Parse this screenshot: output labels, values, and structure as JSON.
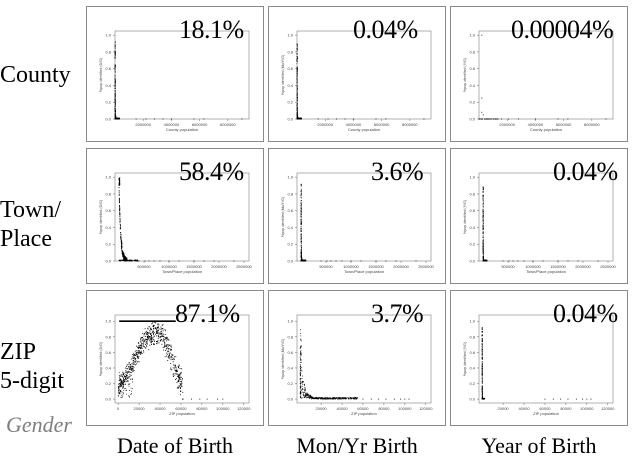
{
  "row_labels": [
    {
      "lines": [
        "County"
      ]
    },
    {
      "lines": [
        "Town/",
        "Place"
      ]
    },
    {
      "lines": [
        "ZIP",
        "5-digit"
      ]
    }
  ],
  "gender_label": "Gender",
  "column_labels": [
    "Date of Birth",
    "Mon/Yr Birth",
    "Year of Birth"
  ],
  "percentages": [
    [
      "18.1%",
      "0.04%",
      "0.00004%"
    ],
    [
      "58.4%",
      "3.6%",
      "0.04%"
    ],
    [
      "87.1%",
      "3.7%",
      "0.04%"
    ]
  ],
  "chart_data": [
    {
      "type": "scatter",
      "panel": "county-dob",
      "xlabel": "County population",
      "ylabel": "%pop identified (D/G)",
      "y_ticks": [
        "0.0",
        "0.2",
        "0.4",
        "0.6",
        "0.8",
        "1.0"
      ],
      "x_ticks": [
        "2000000",
        "4000000",
        "6000000",
        "8000000"
      ],
      "xlim": [
        0,
        9500000
      ],
      "ylim": [
        0,
        1.05
      ],
      "pattern": "spike",
      "peak": 0.92,
      "spike_width": 200000,
      "tail": [
        [
          1500000,
          0
        ],
        [
          2200000,
          0
        ],
        [
          2800000,
          0
        ],
        [
          3400000,
          0
        ],
        [
          4000000,
          0
        ],
        [
          5600000,
          0
        ],
        [
          6300000,
          0
        ],
        [
          9000000,
          0
        ]
      ]
    },
    {
      "type": "scatter",
      "panel": "county-monyr",
      "xlabel": "County population",
      "ylabel": "%pop identified (Mo/Y/G)",
      "y_ticks": [
        "0.0",
        "0.2",
        "0.4",
        "0.6",
        "0.8",
        "1.0"
      ],
      "x_ticks": [
        "2000000",
        "4000000",
        "6000000",
        "8000000"
      ],
      "xlim": [
        0,
        9500000
      ],
      "ylim": [
        0,
        1.05
      ],
      "pattern": "spike",
      "peak": 0.92,
      "spike_width": 200000,
      "tail": [
        [
          1500000,
          0
        ],
        [
          2200000,
          0
        ],
        [
          2800000,
          0
        ],
        [
          3400000,
          0
        ],
        [
          4000000,
          0
        ],
        [
          5600000,
          0
        ],
        [
          6300000,
          0
        ],
        [
          9000000,
          0
        ]
      ]
    },
    {
      "type": "scatter",
      "panel": "county-year",
      "xlabel": "County population",
      "ylabel": "%pop identified (Y/G)",
      "y_ticks": [
        "0.0",
        "0.2",
        "0.4",
        "0.6",
        "0.8",
        "1.0"
      ],
      "x_ticks": [
        "2000000",
        "4000000",
        "6000000",
        "8000000"
      ],
      "xlim": [
        0,
        9500000
      ],
      "ylim": [
        0,
        1.05
      ],
      "pattern": "sparse",
      "points": [
        [
          200000,
          1.0
        ],
        [
          200000,
          0.25
        ],
        [
          200000,
          0.08
        ],
        [
          300000,
          0.05
        ],
        [
          400000,
          0
        ],
        [
          600000,
          0
        ],
        [
          800000,
          0
        ],
        [
          1200000,
          0
        ],
        [
          1600000,
          0
        ],
        [
          2100000,
          0
        ],
        [
          2800000,
          0
        ],
        [
          4000000,
          0
        ],
        [
          5600000,
          0
        ],
        [
          6300000,
          0
        ],
        [
          9000000,
          0
        ]
      ]
    },
    {
      "type": "scatter",
      "panel": "town-dob",
      "xlabel": "Town/Place population",
      "ylabel": "%pop identified (D/G)",
      "y_ticks": [
        "0.0",
        "0.2",
        "0.4",
        "0.6",
        "0.8",
        "1.0"
      ],
      "x_ticks": [
        "500000",
        "1000000",
        "1500000",
        "2000000",
        "2500000"
      ],
      "xlim": [
        -80000,
        2600000
      ],
      "ylim": [
        0,
        1.05
      ],
      "pattern": "curve",
      "peak": 0.92,
      "decay": 22000,
      "tail": [
        [
          400000,
          0
        ],
        [
          520000,
          0
        ],
        [
          600000,
          0
        ],
        [
          700000,
          0
        ],
        [
          820000,
          0
        ],
        [
          1000000,
          0
        ],
        [
          1200000,
          0
        ],
        [
          1500000,
          0
        ],
        [
          1700000,
          0
        ],
        [
          1900000,
          0
        ],
        [
          2300000,
          0
        ]
      ]
    },
    {
      "type": "scatter",
      "panel": "town-monyr",
      "xlabel": "Town/Place population",
      "ylabel": "%pop identified (Mo/Y/G)",
      "y_ticks": [
        "0.0",
        "0.2",
        "0.4",
        "0.6",
        "0.8",
        "1.0"
      ],
      "x_ticks": [
        "500000",
        "1000000",
        "1500000",
        "2000000",
        "2500000"
      ],
      "xlim": [
        -80000,
        2600000
      ],
      "ylim": [
        0,
        1.05
      ],
      "pattern": "spike",
      "peak": 0.92,
      "spike_width": 60000,
      "tail": [
        [
          400000,
          0
        ],
        [
          520000,
          0
        ],
        [
          600000,
          0
        ],
        [
          700000,
          0
        ],
        [
          820000,
          0
        ],
        [
          1000000,
          0
        ],
        [
          1200000,
          0
        ],
        [
          1500000,
          0
        ],
        [
          1700000,
          0
        ],
        [
          1900000,
          0
        ],
        [
          2300000,
          0
        ]
      ]
    },
    {
      "type": "scatter",
      "panel": "town-year",
      "xlabel": "Town/Place population",
      "ylabel": "%pop identified (Y/G)",
      "y_ticks": [
        "0.0",
        "0.2",
        "0.4",
        "0.6",
        "0.8",
        "1.0"
      ],
      "x_ticks": [
        "500000",
        "1000000",
        "1500000",
        "2000000",
        "2500000"
      ],
      "xlim": [
        -80000,
        2600000
      ],
      "ylim": [
        0,
        1.05
      ],
      "pattern": "spike",
      "peak": 0.9,
      "spike_width": 50000,
      "tail": [
        [
          400000,
          0
        ],
        [
          520000,
          0
        ],
        [
          600000,
          0
        ],
        [
          700000,
          0
        ],
        [
          820000,
          0
        ],
        [
          1000000,
          0
        ],
        [
          1200000,
          0
        ],
        [
          1500000,
          0
        ],
        [
          1700000,
          0
        ],
        [
          1900000,
          0
        ],
        [
          2300000,
          0
        ]
      ]
    },
    {
      "type": "scatter",
      "panel": "zip-dob",
      "xlabel": "ZIP population",
      "ylabel": "%pop identified (D/G)",
      "y_ticks": [
        "0.0",
        "0.2",
        "0.4",
        "0.6",
        "0.8",
        "1.0"
      ],
      "x_ticks": [
        "0",
        "20000",
        "40000",
        "60000",
        "80000",
        "100000",
        "120000"
      ],
      "xlim": [
        -3000,
        125000
      ],
      "ylim": [
        -0.05,
        1.08
      ],
      "pattern": "cloud",
      "line_y": 1.0,
      "line_x": [
        1000,
        55000
      ],
      "tail": [
        [
          62000,
          0
        ],
        [
          70000,
          0
        ],
        [
          78000,
          0
        ],
        [
          85000,
          0
        ],
        [
          95000,
          0
        ],
        [
          100000,
          0
        ]
      ]
    },
    {
      "type": "scatter",
      "panel": "zip-monyr",
      "xlabel": "ZIP population",
      "ylabel": "%pop identified (Mo/Y/G)",
      "y_ticks": [
        "0.0",
        "0.2",
        "0.4",
        "0.6",
        "0.8",
        "1.0"
      ],
      "x_ticks": [
        "20000",
        "40000",
        "60000",
        "80000",
        "100000",
        "120000"
      ],
      "xlim": [
        -3000,
        125000
      ],
      "ylim": [
        -0.05,
        1.08
      ],
      "pattern": "decay",
      "tail": [
        [
          60000,
          0
        ],
        [
          68000,
          0
        ],
        [
          75000,
          0
        ],
        [
          82000,
          0
        ],
        [
          90000,
          0
        ],
        [
          96000,
          0
        ],
        [
          100000,
          0
        ],
        [
          104000,
          0
        ]
      ]
    },
    {
      "type": "scatter",
      "panel": "zip-year",
      "xlabel": "ZIP population",
      "ylabel": "%pop identified (Y/G)",
      "y_ticks": [
        "0.0",
        "0.2",
        "0.4",
        "0.6",
        "0.8",
        "1.0"
      ],
      "x_ticks": [
        "20000",
        "40000",
        "60000",
        "80000",
        "100000",
        "120000"
      ],
      "xlim": [
        -3000,
        125000
      ],
      "ylim": [
        -0.05,
        1.08
      ],
      "pattern": "spike",
      "peak": 0.92,
      "spike_width": 1500,
      "tail": [
        [
          60000,
          0
        ],
        [
          68000,
          0
        ],
        [
          75000,
          0
        ],
        [
          82000,
          0
        ],
        [
          90000,
          0
        ],
        [
          96000,
          0
        ],
        [
          100000,
          0
        ],
        [
          104000,
          0
        ]
      ]
    }
  ]
}
